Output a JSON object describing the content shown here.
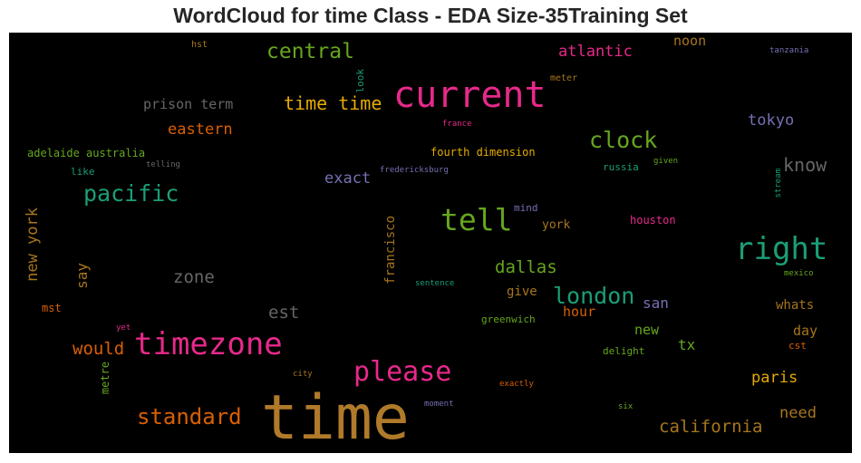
{
  "chart_data": {
    "type": "wordcloud",
    "title": "WordCloud for time Class - EDA Size-35Training Set",
    "background": "#000000",
    "words": [
      {
        "text": "time",
        "color": "#b07a2a"
      },
      {
        "text": "current",
        "color": "#e7298a"
      },
      {
        "text": "timezone",
        "color": "#e7298a"
      },
      {
        "text": "right",
        "color": "#1b9e77"
      },
      {
        "text": "tell",
        "color": "#66a61e"
      },
      {
        "text": "please",
        "color": "#e7298a"
      },
      {
        "text": "pacific",
        "color": "#1b9e77"
      },
      {
        "text": "clock",
        "color": "#66a61e"
      },
      {
        "text": "london",
        "color": "#1b9e77"
      },
      {
        "text": "standard",
        "color": "#d95f02"
      },
      {
        "text": "central",
        "color": "#66a61e"
      },
      {
        "text": "time time",
        "color": "#e6ab02"
      },
      {
        "text": "know",
        "color": "#666666"
      },
      {
        "text": "california",
        "color": "#a6761d"
      },
      {
        "text": "dallas",
        "color": "#66a61e"
      },
      {
        "text": "zone",
        "color": "#666666"
      },
      {
        "text": "new york",
        "color": "#a6761d"
      },
      {
        "text": "atlantic",
        "color": "#e7298a"
      },
      {
        "text": "tokyo",
        "color": "#7570b3"
      },
      {
        "text": "eastern",
        "color": "#d95f02"
      },
      {
        "text": "exact",
        "color": "#7570b3"
      },
      {
        "text": "would",
        "color": "#d95f02"
      },
      {
        "text": "est",
        "color": "#666666"
      },
      {
        "text": "paris",
        "color": "#e6ab02"
      },
      {
        "text": "need",
        "color": "#a6761d"
      },
      {
        "text": "prison term",
        "color": "#666666"
      },
      {
        "text": "noon",
        "color": "#a6761d"
      },
      {
        "text": "say",
        "color": "#a6761d"
      },
      {
        "text": "san",
        "color": "#7570b3"
      },
      {
        "text": "new",
        "color": "#66a61e"
      },
      {
        "text": "tx",
        "color": "#66a61e"
      },
      {
        "text": "day",
        "color": "#a6761d"
      },
      {
        "text": "hour",
        "color": "#d95f02"
      },
      {
        "text": "give",
        "color": "#a6761d"
      },
      {
        "text": "francisco",
        "color": "#a6761d"
      },
      {
        "text": "whats",
        "color": "#a6761d"
      },
      {
        "text": "york",
        "color": "#a6761d"
      },
      {
        "text": "fourth dimension",
        "color": "#e6ab02"
      },
      {
        "text": "adelaide australia",
        "color": "#66a61e"
      },
      {
        "text": "houston",
        "color": "#e7298a"
      },
      {
        "text": "metre",
        "color": "#66a61e"
      },
      {
        "text": "greenwich",
        "color": "#66a61e"
      },
      {
        "text": "mst",
        "color": "#d95f02"
      },
      {
        "text": "russia",
        "color": "#1b9e77"
      },
      {
        "text": "delight",
        "color": "#66a61e"
      },
      {
        "text": "cst",
        "color": "#d95f02"
      },
      {
        "text": "mind",
        "color": "#7570b3"
      },
      {
        "text": "like",
        "color": "#1b9e77"
      },
      {
        "text": "look",
        "color": "#1b9e77"
      },
      {
        "text": "meter",
        "color": "#a6761d"
      },
      {
        "text": "hst",
        "color": "#a6761d"
      },
      {
        "text": "fredericksburg",
        "color": "#7570b3"
      },
      {
        "text": "stream",
        "color": "#1b9e77"
      },
      {
        "text": "telling",
        "color": "#666666"
      },
      {
        "text": "france",
        "color": "#e7298a"
      },
      {
        "text": "given",
        "color": "#66a61e"
      },
      {
        "text": "sentence",
        "color": "#1b9e77"
      },
      {
        "text": "mexico",
        "color": "#66a61e"
      },
      {
        "text": "tanzania",
        "color": "#7570b3"
      },
      {
        "text": "exactly",
        "color": "#d95f02"
      },
      {
        "text": "moment",
        "color": "#7570b3"
      },
      {
        "text": "six",
        "color": "#66a61e"
      },
      {
        "text": "city",
        "color": "#a6761d"
      },
      {
        "text": "yet",
        "color": "#e7298a"
      }
    ]
  }
}
